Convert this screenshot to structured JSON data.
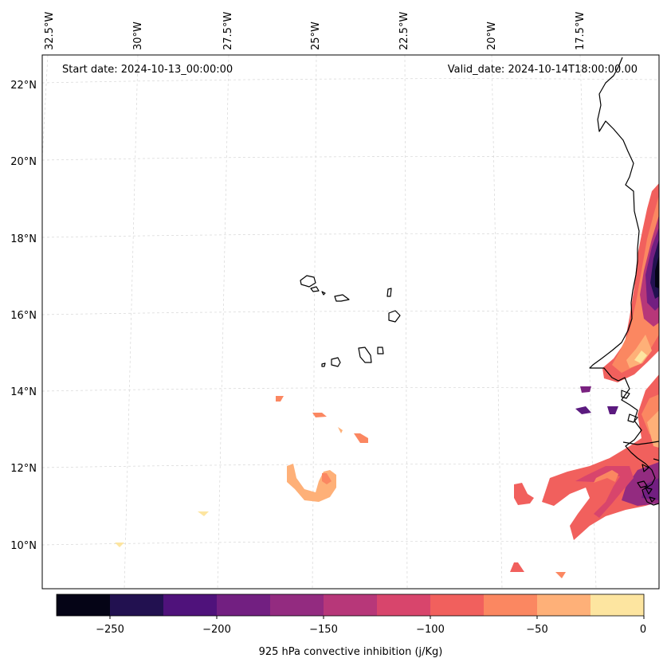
{
  "map": {
    "start_date": "Start date: 2024-10-13_00:00:00",
    "valid_date": "Valid_date: 2024-10-14T18:00:00.00",
    "lat_labels": [
      "22°N",
      "20°N",
      "18°N",
      "16°N",
      "14°N",
      "12°N",
      "10°N"
    ],
    "lon_labels": [
      "32.5°W",
      "30°W",
      "27.5°W",
      "25°W",
      "22.5°W",
      "20°W",
      "17.5°W"
    ],
    "field": "925 hPa convective inhibition",
    "colors": {
      "coastline": "#000000",
      "gridline": "#cccccc"
    }
  },
  "colorbar": {
    "label": "925 hPa convective inhibition (j/Kg)",
    "tick_labels": [
      "−250",
      "−200",
      "−150",
      "−100",
      "−50",
      "0"
    ],
    "levels": [
      -275,
      -250,
      -225,
      -200,
      -175,
      -150,
      -125,
      -100,
      -75,
      -50,
      -25,
      0
    ],
    "colors": [
      "#050416",
      "#221150",
      "#4f127b",
      "#721f81",
      "#932b80",
      "#b73779",
      "#d8456c",
      "#f1605d",
      "#fb8761",
      "#feb078",
      "#fde5a0"
    ]
  }
}
